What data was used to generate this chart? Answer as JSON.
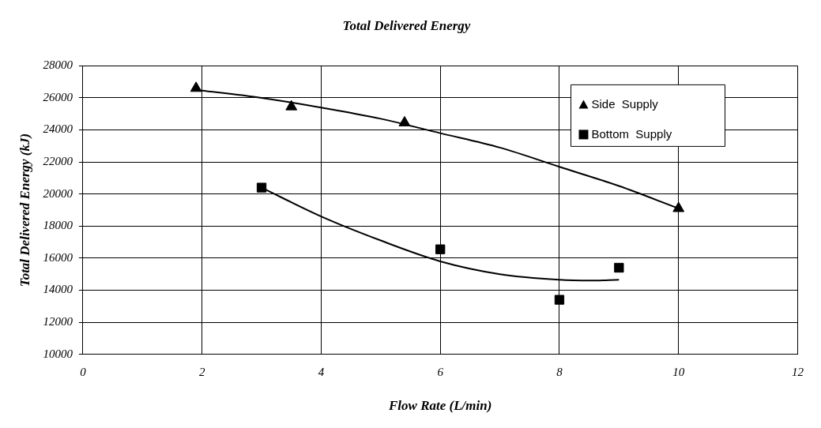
{
  "chart_data": {
    "type": "scatter",
    "title": "Total Delivered Energy",
    "xlabel": "Flow Rate (L/min)",
    "ylabel": "Total Delivered Energy (kJ)",
    "xlim": [
      0,
      12
    ],
    "xticks": [
      0,
      2,
      4,
      6,
      8,
      10,
      12
    ],
    "ylim": [
      10000,
      28000
    ],
    "yticks": [
      10000,
      12000,
      14000,
      16000,
      18000,
      20000,
      22000,
      24000,
      26000,
      28000
    ],
    "grid": true,
    "legend": "top right",
    "series": [
      {
        "name": "Side  Supply",
        "color": "#000000",
        "marker": "triangle",
        "x": [
          1.9,
          3.5,
          5.4,
          10
        ],
        "values": [
          26600,
          25450,
          24450,
          19100
        ]
      },
      {
        "name": "Bottom  Supply",
        "color": "#000000",
        "marker": "square",
        "x": [
          3,
          6,
          8,
          9
        ],
        "values": [
          20400,
          16550,
          13400,
          15400
        ]
      },
      {
        "type": "line",
        "color": "#000000",
        "marker": "none",
        "x": [
          1.9,
          3,
          4,
          5,
          6,
          7,
          8,
          9,
          10
        ],
        "values": [
          26500,
          26000,
          25400,
          24700,
          23800,
          22900,
          21700,
          20500,
          19100
        ]
      },
      {
        "type": "line",
        "color": "#000000",
        "marker": "none",
        "x": [
          3,
          4,
          5,
          6,
          7,
          8,
          8.5,
          9
        ],
        "values": [
          20400,
          18600,
          17100,
          15800,
          15000,
          14650,
          14600,
          14650
        ]
      }
    ]
  }
}
